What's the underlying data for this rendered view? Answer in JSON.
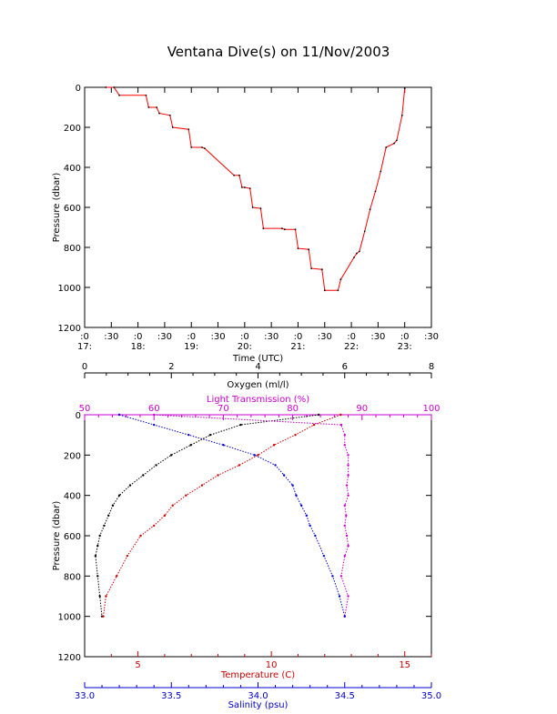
{
  "page": {
    "title": "Ventana Dive(s) on 11/Nov/2003"
  },
  "chart_data": [
    {
      "type": "line",
      "xlabel": "Time (UTC)",
      "ylabel": "Pressure (dbar)",
      "xlim": [
        17.0,
        23.5
      ],
      "ylim": [
        1200,
        0
      ],
      "y_ticks": [
        "0",
        "200",
        "400",
        "600",
        "800",
        "1000",
        "1200"
      ],
      "x_ticks_minutes": [
        ":0",
        ":30",
        ":0",
        ":30",
        ":0",
        ":30",
        ":0",
        ":30",
        ":0",
        ":30",
        ":0",
        ":30",
        ":0",
        ":30"
      ],
      "x_ticks_hours": [
        "17:",
        "18:",
        "19:",
        "20:",
        "21:",
        "22:",
        "23:"
      ],
      "series": [
        {
          "color": "#ff0000",
          "x": [
            17.4,
            17.55,
            17.65,
            18.15,
            18.2,
            18.35,
            18.4,
            18.6,
            18.65,
            18.95,
            19.0,
            19.2,
            19.25,
            19.8,
            19.9,
            19.95,
            20.0,
            20.1,
            20.15,
            20.3,
            20.35,
            20.7,
            20.75,
            20.95,
            21.0,
            21.2,
            21.25,
            21.45,
            21.5,
            21.75,
            21.8,
            22.05,
            22.1,
            22.15,
            22.25,
            22.35,
            22.45,
            22.55,
            22.65,
            22.8,
            22.85,
            22.95,
            23.0
          ],
          "y": [
            0,
            0,
            40,
            40,
            100,
            100,
            130,
            140,
            200,
            210,
            300,
            300,
            305,
            440,
            440,
            500,
            500,
            505,
            600,
            605,
            705,
            705,
            710,
            710,
            805,
            810,
            905,
            910,
            1015,
            1015,
            960,
            850,
            830,
            820,
            720,
            610,
            520,
            420,
            300,
            280,
            265,
            140,
            5
          ]
        }
      ]
    },
    {
      "type": "scatter",
      "ylabel": "Pressure (dbar)",
      "ylim": [
        1200,
        0
      ],
      "y_ticks": [
        "0",
        "200",
        "400",
        "600",
        "800",
        "1000",
        "1200"
      ],
      "axes": {
        "oxygen": {
          "label": "Oxygen (ml/l)",
          "range": [
            0,
            8
          ],
          "ticks": [
            "0",
            "2",
            "4",
            "6",
            "8"
          ],
          "color": "#000000"
        },
        "light": {
          "label": "Light Transmission (%)",
          "range": [
            50,
            100
          ],
          "ticks": [
            "50",
            "60",
            "70",
            "80",
            "90",
            "100"
          ],
          "color": "#cc00cc"
        },
        "temperature": {
          "label": "Temperature (C)",
          "range": [
            3.0,
            16.0
          ],
          "ticks": [
            "5",
            "10",
            "15"
          ],
          "color": "#cc0000"
        },
        "salinity": {
          "label": "Salinity (psu)",
          "range": [
            33.0,
            35.0
          ],
          "ticks": [
            "33.0",
            "33.5",
            "34.0",
            "34.5",
            "35.0"
          ],
          "color": "#0000cc"
        }
      },
      "series": [
        {
          "axis": "oxygen",
          "color": "#000000",
          "y": [
            0,
            50,
            100,
            150,
            200,
            250,
            300,
            350,
            400,
            450,
            500,
            550,
            600,
            650,
            700,
            800,
            900,
            1000
          ],
          "values": [
            5.4,
            3.6,
            2.9,
            2.45,
            2.0,
            1.65,
            1.35,
            1.05,
            0.8,
            0.65,
            0.55,
            0.45,
            0.35,
            0.3,
            0.25,
            0.3,
            0.35,
            0.4
          ]
        },
        {
          "axis": "light",
          "color": "#cc00cc",
          "y": [
            0,
            50,
            100,
            150,
            200,
            250,
            300,
            350,
            400,
            450,
            500,
            550,
            600,
            650,
            700,
            800,
            900,
            1000
          ],
          "values": [
            60,
            87,
            87.5,
            87.5,
            88,
            88,
            88,
            87.8,
            88,
            87.5,
            87.7,
            87.5,
            87.8,
            88,
            87.5,
            87,
            88,
            87.5
          ]
        },
        {
          "axis": "temperature",
          "color": "#cc0000",
          "y": [
            0,
            50,
            100,
            150,
            200,
            250,
            300,
            350,
            400,
            450,
            500,
            550,
            600,
            700,
            800,
            900,
            1000
          ],
          "values": [
            12.6,
            11.6,
            10.9,
            10.1,
            9.5,
            8.8,
            8.0,
            7.4,
            6.8,
            6.3,
            6.0,
            5.6,
            5.1,
            4.6,
            4.2,
            3.8,
            3.7
          ]
        },
        {
          "axis": "salinity",
          "color": "#0000cc",
          "y": [
            0,
            50,
            100,
            150,
            200,
            250,
            300,
            350,
            400,
            450,
            500,
            550,
            600,
            700,
            800,
            900,
            1000
          ],
          "values": [
            33.2,
            33.4,
            33.6,
            33.8,
            33.98,
            34.1,
            34.15,
            34.2,
            34.22,
            34.25,
            34.28,
            34.3,
            34.33,
            34.38,
            34.43,
            34.47,
            34.5
          ]
        }
      ]
    }
  ]
}
